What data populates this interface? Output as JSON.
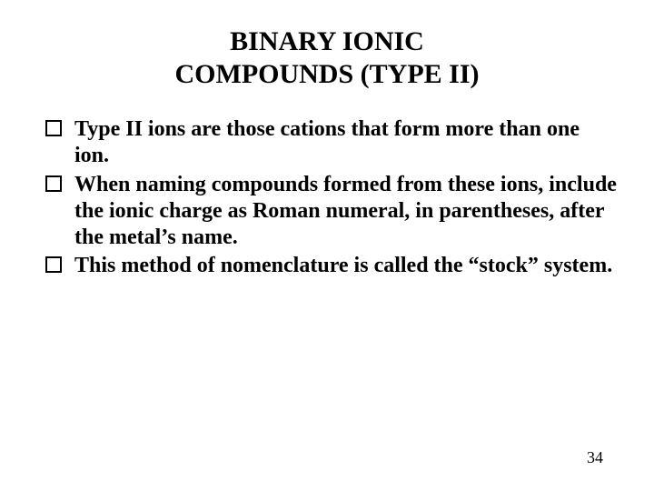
{
  "colors": {
    "background": "#ffffff",
    "text": "#000000",
    "bullet_border": "#000000"
  },
  "typography": {
    "font_family": "Times New Roman",
    "title_fontsize": 30,
    "body_fontsize": 24,
    "body_fontweight": "bold",
    "pagenum_fontsize": 18
  },
  "title": {
    "line1": "BINARY IONIC",
    "line2": "COMPOUNDS (TYPE II)"
  },
  "bullets": {
    "items": [
      "Type II ions are those cations that form more than one ion.",
      "When naming compounds formed from these ions, include the ionic charge as Roman numeral, in parentheses, after the metal’s name.",
      "This method of nomenclature is called the “stock” system."
    ]
  },
  "page_number": "34"
}
